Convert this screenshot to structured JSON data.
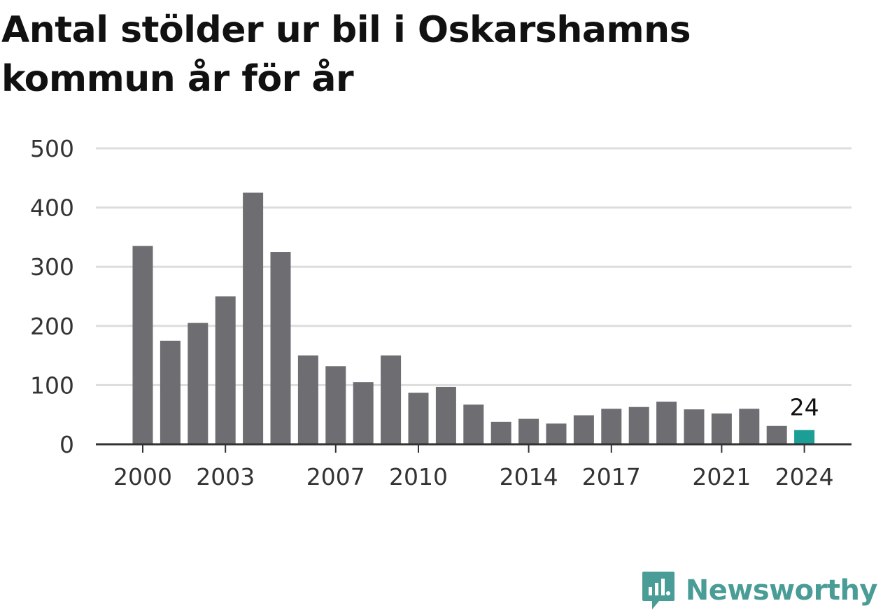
{
  "title": "Antal stölder ur bil i Oskarshamns kommun år för år",
  "brand": "Newsworthy",
  "colors": {
    "bar": "#6e6d72",
    "highlight": "#1a9e95",
    "grid": "#dddddd",
    "axis": "#333333",
    "brand": "#4a9c97"
  },
  "chart_data": {
    "type": "bar",
    "categories": [
      "2000",
      "2001",
      "2002",
      "2003",
      "2004",
      "2005",
      "2006",
      "2007",
      "2008",
      "2009",
      "2010",
      "2011",
      "2012",
      "2013",
      "2014",
      "2015",
      "2016",
      "2017",
      "2018",
      "2019",
      "2020",
      "2021",
      "2022",
      "2023",
      "2024"
    ],
    "values": [
      335,
      175,
      205,
      250,
      425,
      325,
      150,
      132,
      105,
      150,
      87,
      97,
      67,
      38,
      43,
      35,
      49,
      60,
      63,
      72,
      59,
      52,
      60,
      31,
      24
    ],
    "ylim": [
      0,
      500
    ],
    "yticks": [
      0,
      100,
      200,
      300,
      400,
      500
    ],
    "xtick_labels": [
      "2000",
      "2003",
      "2007",
      "2010",
      "2014",
      "2017",
      "2021",
      "2024"
    ],
    "highlight": "2024",
    "data_labels": [
      {
        "category": "2024",
        "text": "24"
      }
    ],
    "grid": true,
    "xlabel": "",
    "ylabel": ""
  }
}
